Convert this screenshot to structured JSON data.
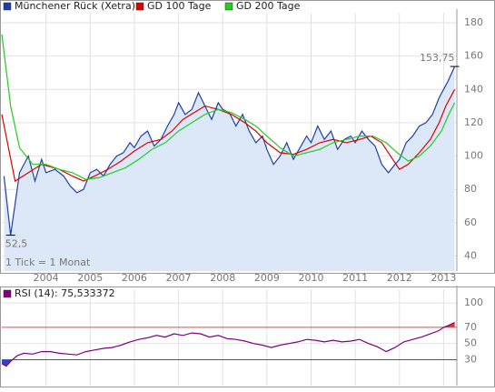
{
  "chart_data": [
    {
      "type": "line",
      "note": "1 Tick = 1 Monat",
      "xlim": [
        2003.0,
        2013.3
      ],
      "xticks": [
        2004,
        2005,
        2006,
        2007,
        2008,
        2009,
        2010,
        2011,
        2012,
        2013
      ],
      "ylim": [
        31,
        186
      ],
      "yticks": [
        40,
        60,
        80,
        100,
        120,
        140,
        160,
        180
      ],
      "grid": true,
      "fill": "#dce8f8",
      "series": [
        {
          "name": "Münchener Rück (Xetra)",
          "color": "#1f3fa8",
          "area": true,
          "x": [
            2003.05,
            2003.2,
            2003.4,
            2003.6,
            2003.75,
            2003.9,
            2004.0,
            2004.2,
            2004.4,
            2004.55,
            2004.7,
            2004.85,
            2005.0,
            2005.15,
            2005.3,
            2005.45,
            2005.6,
            2005.75,
            2005.9,
            2006.0,
            2006.15,
            2006.3,
            2006.45,
            2006.6,
            2006.75,
            2006.9,
            2007.0,
            2007.15,
            2007.3,
            2007.45,
            2007.6,
            2007.75,
            2007.9,
            2008.0,
            2008.15,
            2008.3,
            2008.45,
            2008.6,
            2008.75,
            2008.9,
            2009.0,
            2009.15,
            2009.3,
            2009.45,
            2009.6,
            2009.75,
            2009.9,
            2010.0,
            2010.15,
            2010.3,
            2010.45,
            2010.6,
            2010.75,
            2010.9,
            2011.0,
            2011.15,
            2011.3,
            2011.45,
            2011.6,
            2011.75,
            2011.9,
            2012.0,
            2012.15,
            2012.3,
            2012.45,
            2012.6,
            2012.75,
            2012.9,
            2013.0,
            2013.1,
            2013.25
          ],
          "values": [
            88,
            52.5,
            90,
            100,
            85,
            98,
            90,
            92,
            88,
            82,
            78,
            80,
            90,
            92,
            88,
            95,
            100,
            102,
            108,
            105,
            112,
            115,
            106,
            110,
            118,
            125,
            132,
            125,
            128,
            138,
            130,
            122,
            132,
            128,
            126,
            118,
            125,
            115,
            108,
            112,
            104,
            95,
            100,
            108,
            98,
            105,
            112,
            108,
            118,
            110,
            115,
            104,
            110,
            112,
            108,
            115,
            110,
            106,
            95,
            90,
            95,
            98,
            108,
            112,
            118,
            120,
            125,
            135,
            140,
            145,
            153.75
          ],
          "value_labels": [
            null,
            "52,5",
            null,
            null,
            null,
            null,
            null,
            null,
            null,
            null,
            null,
            null,
            null,
            null,
            null,
            null,
            null,
            null,
            null,
            null,
            null,
            null,
            null,
            null,
            null,
            null,
            null,
            null,
            null,
            null,
            null,
            null,
            null,
            null,
            null,
            null,
            null,
            null,
            null,
            null,
            null,
            null,
            null,
            null,
            null,
            null,
            null,
            null,
            null,
            null,
            null,
            null,
            null,
            null,
            null,
            null,
            null,
            null,
            null,
            null,
            null,
            null,
            null,
            null,
            null,
            null,
            null,
            null,
            null,
            null,
            "153,75"
          ]
        },
        {
          "name": "GD 100 Tage",
          "color": "#dd0000",
          "x": [
            2003.0,
            2003.3,
            2003.6,
            2003.9,
            2004.3,
            2004.6,
            2004.85,
            2005.1,
            2005.4,
            2005.7,
            2006.0,
            2006.3,
            2006.6,
            2006.85,
            2007.1,
            2007.35,
            2007.6,
            2007.9,
            2008.2,
            2008.5,
            2008.75,
            2009.0,
            2009.3,
            2009.6,
            2009.9,
            2010.2,
            2010.5,
            2010.8,
            2011.1,
            2011.35,
            2011.6,
            2011.8,
            2012.0,
            2012.2,
            2012.45,
            2012.7,
            2012.9,
            2013.05,
            2013.25
          ],
          "values": [
            125,
            85,
            90,
            95,
            92,
            88,
            85,
            88,
            92,
            97,
            103,
            108,
            110,
            115,
            122,
            126,
            130,
            128,
            125,
            120,
            115,
            108,
            102,
            101,
            104,
            108,
            110,
            108,
            110,
            112,
            108,
            100,
            92,
            95,
            102,
            110,
            120,
            130,
            140
          ]
        },
        {
          "name": "GD 200 Tage",
          "color": "#22cc22",
          "x": [
            2003.0,
            2003.2,
            2003.4,
            2003.7,
            2004.0,
            2004.3,
            2004.6,
            2004.9,
            2005.2,
            2005.5,
            2005.8,
            2006.1,
            2006.4,
            2006.7,
            2007.0,
            2007.3,
            2007.6,
            2007.9,
            2008.2,
            2008.5,
            2008.75,
            2009.0,
            2009.3,
            2009.6,
            2009.9,
            2010.2,
            2010.5,
            2010.8,
            2011.1,
            2011.4,
            2011.7,
            2011.95,
            2012.2,
            2012.45,
            2012.7,
            2012.95,
            2013.1,
            2013.25
          ],
          "values": [
            173,
            130,
            105,
            95,
            95,
            92,
            90,
            86,
            87,
            90,
            93,
            98,
            104,
            108,
            115,
            120,
            125,
            128,
            126,
            122,
            118,
            112,
            105,
            100,
            102,
            104,
            108,
            110,
            112,
            112,
            108,
            102,
            97,
            100,
            106,
            115,
            124,
            132
          ]
        }
      ]
    },
    {
      "type": "line",
      "xlim": [
        2003.0,
        2013.3
      ],
      "xticks": [
        2004,
        2005,
        2006,
        2007,
        2008,
        2009,
        2010,
        2011,
        2012,
        2013
      ],
      "ylim": [
        -2,
        117
      ],
      "yticks": [
        30,
        50,
        70,
        100
      ],
      "grid": true,
      "hlines": [
        {
          "value": 70,
          "color": "#e05050",
          "fill": "#e03030"
        },
        {
          "value": 30,
          "color": "#4050c0",
          "fill": "#3040d0"
        }
      ],
      "series": [
        {
          "name": "RSI (14): 75,533372",
          "color": "#800080",
          "x": [
            2003.0,
            2003.1,
            2003.2,
            2003.35,
            2003.5,
            2003.7,
            2003.9,
            2004.1,
            2004.3,
            2004.5,
            2004.7,
            2004.9,
            2005.1,
            2005.3,
            2005.5,
            2005.7,
            2005.9,
            2006.1,
            2006.3,
            2006.5,
            2006.7,
            2006.9,
            2007.1,
            2007.3,
            2007.5,
            2007.7,
            2007.9,
            2008.1,
            2008.3,
            2008.5,
            2008.7,
            2008.9,
            2009.1,
            2009.3,
            2009.5,
            2009.7,
            2009.9,
            2010.1,
            2010.3,
            2010.5,
            2010.7,
            2010.9,
            2011.1,
            2011.3,
            2011.5,
            2011.7,
            2011.9,
            2012.1,
            2012.3,
            2012.5,
            2012.7,
            2012.9,
            2013.0,
            2013.1,
            2013.25
          ],
          "values": [
            25,
            22,
            28,
            35,
            38,
            37,
            40,
            40,
            38,
            37,
            36,
            40,
            42,
            44,
            45,
            48,
            52,
            55,
            57,
            60,
            58,
            62,
            60,
            63,
            62,
            58,
            60,
            56,
            55,
            53,
            50,
            48,
            45,
            48,
            50,
            52,
            55,
            54,
            52,
            54,
            52,
            53,
            55,
            50,
            46,
            40,
            45,
            52,
            55,
            58,
            62,
            66,
            70,
            72,
            76
          ]
        }
      ]
    }
  ]
}
